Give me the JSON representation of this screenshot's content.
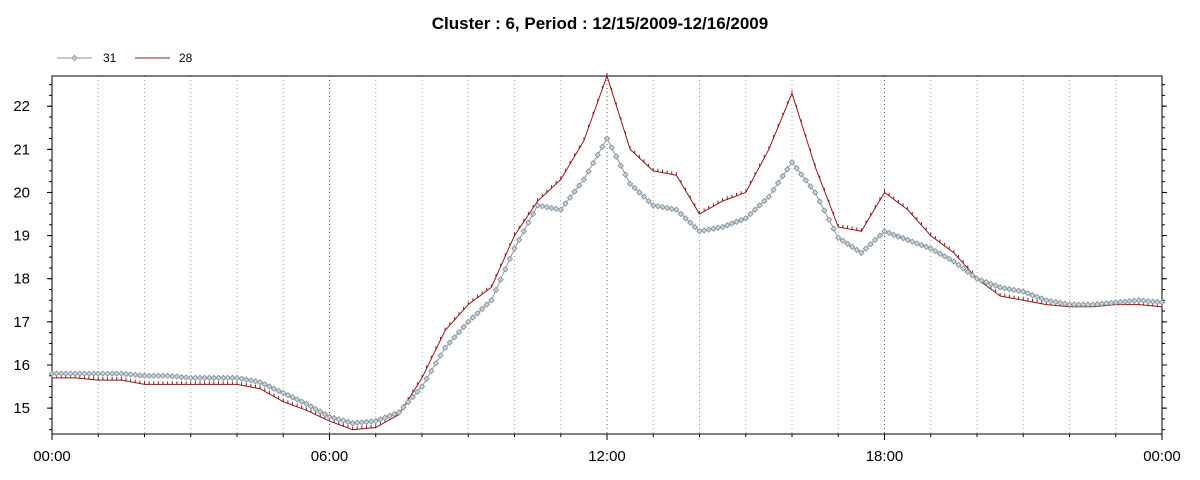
{
  "title": "Cluster : 6, Period : 12/15/2009-12/16/2009",
  "chart_data": {
    "type": "line",
    "title": "Cluster : 6, Period : 12/15/2009-12/16/2009",
    "xlabel": "",
    "ylabel": "",
    "ylim": [
      14.4,
      22.7
    ],
    "xlim_hours": [
      0,
      24
    ],
    "x_tick_labels": [
      "00:00",
      "06:00",
      "12:00",
      "18:00",
      "00:00"
    ],
    "y_tick_labels": [
      "15",
      "16",
      "17",
      "18",
      "19",
      "20",
      "21",
      "22"
    ],
    "legend_position": "top-left",
    "grid": "vertical dotted",
    "series": [
      {
        "name": "31",
        "color": "#8a9aa4",
        "marker": "diamond",
        "x": [
          0,
          0.5,
          1,
          1.5,
          2,
          2.5,
          3,
          3.5,
          4,
          4.5,
          5,
          5.5,
          6,
          6.5,
          7,
          7.5,
          8,
          8.5,
          9,
          9.5,
          10,
          10.5,
          11,
          11.5,
          12,
          12.5,
          13,
          13.5,
          14,
          14.5,
          15,
          15.5,
          16,
          16.5,
          17,
          17.5,
          18,
          18.5,
          19,
          19.5,
          20,
          20.5,
          21,
          21.5,
          22,
          22.5,
          23,
          23.5,
          24
        ],
        "values": [
          15.8,
          15.8,
          15.8,
          15.8,
          15.75,
          15.75,
          15.7,
          15.7,
          15.7,
          15.6,
          15.35,
          15.1,
          14.8,
          14.65,
          14.7,
          14.9,
          15.5,
          16.4,
          17.0,
          17.5,
          18.7,
          19.7,
          19.6,
          20.3,
          21.25,
          20.2,
          19.7,
          19.6,
          19.1,
          19.2,
          19.4,
          19.9,
          20.7,
          20.0,
          18.95,
          18.6,
          19.1,
          18.9,
          18.7,
          18.4,
          18.0,
          17.8,
          17.7,
          17.5,
          17.4,
          17.4,
          17.45,
          17.5,
          17.45
        ]
      },
      {
        "name": "28",
        "color": "#8b1a1a",
        "marker": "tick",
        "x": [
          0,
          0.5,
          1,
          1.5,
          2,
          2.5,
          3,
          3.5,
          4,
          4.5,
          5,
          5.5,
          6,
          6.5,
          7,
          7.5,
          8,
          8.5,
          9,
          9.5,
          10,
          10.5,
          11,
          11.5,
          12,
          12.5,
          13,
          13.5,
          14,
          14.5,
          15,
          15.5,
          16,
          16.5,
          17,
          17.5,
          18,
          18.5,
          19,
          19.5,
          20,
          20.5,
          21,
          21.5,
          22,
          22.5,
          23,
          23.5,
          24
        ],
        "values": [
          15.7,
          15.7,
          15.65,
          15.65,
          15.55,
          15.55,
          15.55,
          15.55,
          15.55,
          15.45,
          15.15,
          14.95,
          14.7,
          14.5,
          14.55,
          14.85,
          15.7,
          16.8,
          17.4,
          17.8,
          19.0,
          19.8,
          20.3,
          21.2,
          22.7,
          21.0,
          20.5,
          20.4,
          19.5,
          19.8,
          20.0,
          21.0,
          22.3,
          20.6,
          19.2,
          19.1,
          20.0,
          19.6,
          19.0,
          18.6,
          18.0,
          17.6,
          17.5,
          17.4,
          17.35,
          17.35,
          17.4,
          17.4,
          17.35
        ]
      }
    ]
  }
}
